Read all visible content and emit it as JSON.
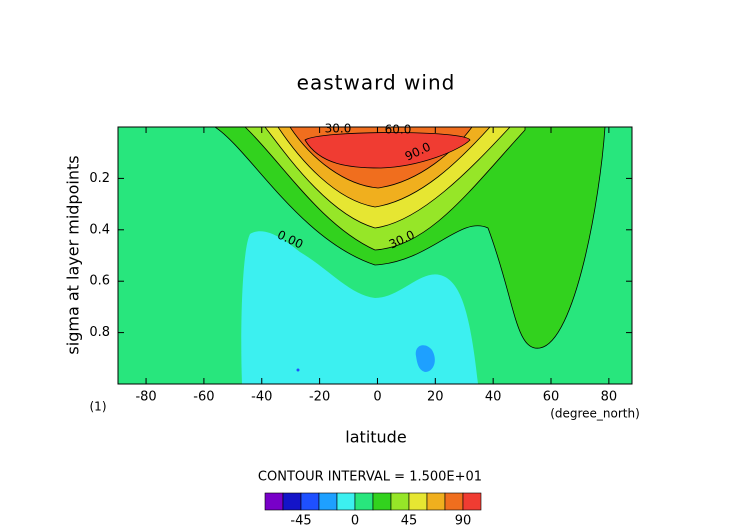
{
  "chart_data": {
    "type": "contour",
    "title": "eastward wind",
    "x_label": "latitude",
    "x_unit": "(degree_north)",
    "y_label": "sigma at layer midpoints",
    "y_unit": "(1)",
    "xlim": [
      -89.7,
      88
    ],
    "xticks": [
      -80,
      -60,
      -40,
      -20,
      0,
      20,
      40,
      60,
      80
    ],
    "ylim": [
      1,
      0
    ],
    "yticks": [
      0.2,
      0.4,
      0.6,
      0.8
    ],
    "contour_interval_text": "CONTOUR INTERVAL = 1.500E+01",
    "levels": [
      -75,
      -60,
      -45,
      -30,
      -15,
      0,
      15,
      30,
      45,
      60,
      75,
      90,
      105
    ],
    "colors": [
      "#7800c8",
      "#1414c8",
      "#1e50ff",
      "#1ea0ff",
      "#3cf0f0",
      "#28e67d",
      "#32d21e",
      "#96e628",
      "#e6e632",
      "#f0af1e",
      "#f06e1e",
      "#f03c32"
    ],
    "colorbar_ticks": [
      -45,
      0,
      45,
      90
    ],
    "contour_labels": [
      {
        "value": 30,
        "label": "30.0"
      },
      {
        "value": 60,
        "label": "60.0"
      },
      {
        "value": 90,
        "label": "90.0"
      },
      {
        "value": 30,
        "label": "30.0"
      },
      {
        "value": 0,
        "label": "0.00"
      }
    ]
  }
}
